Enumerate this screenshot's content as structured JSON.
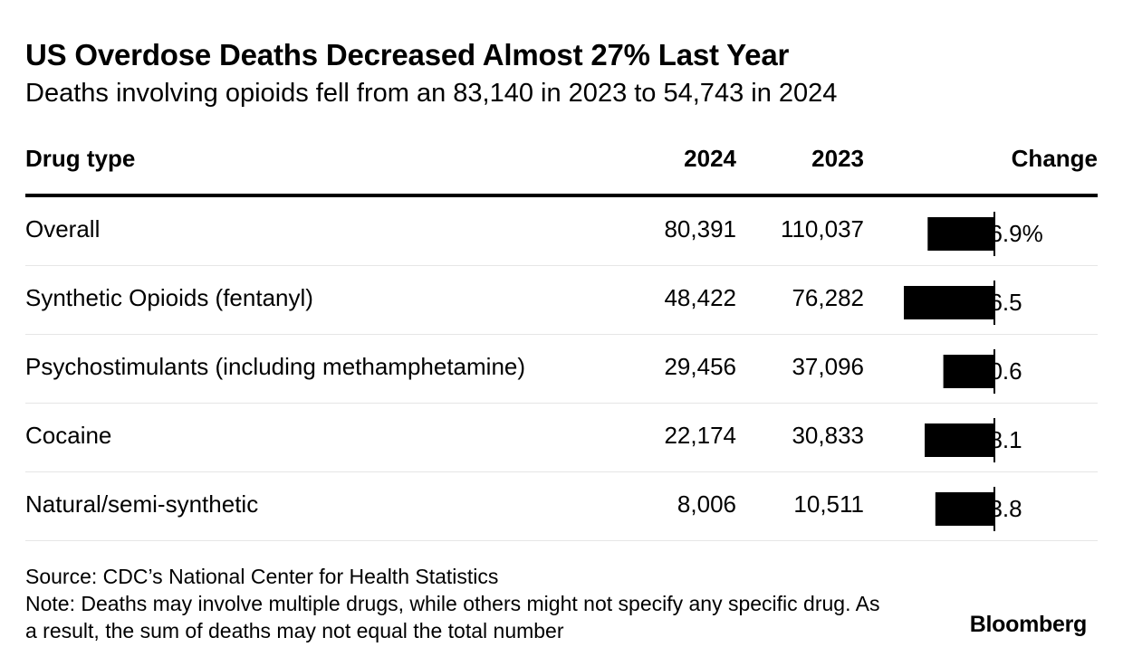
{
  "title": "US Overdose Deaths Decreased Almost 27% Last Year",
  "subtitle": "Deaths involving opioids fell from an 83,140 in 2023 to 54,743 in 2024",
  "chart_data": {
    "type": "table",
    "columns": [
      "Drug type",
      "2024",
      "2023",
      "Change"
    ],
    "rows": [
      {
        "drug": "Overall",
        "y2024": "80,391",
        "y2023": "110,037",
        "change": 26.9,
        "change_label": "26.9%"
      },
      {
        "drug": "Synthetic Opioids (fentanyl)",
        "y2024": "48,422",
        "y2023": "76,282",
        "change": 36.5,
        "change_label": "36.5"
      },
      {
        "drug": "Psychostimulants (including methamphetamine)",
        "y2024": "29,456",
        "y2023": "37,096",
        "change": 20.6,
        "change_label": "20.6"
      },
      {
        "drug": "Cocaine",
        "y2024": "22,174",
        "y2023": "30,833",
        "change": 28.1,
        "change_label": "28.1"
      },
      {
        "drug": "Natural/semi-synthetic",
        "y2024": "8,006",
        "y2023": "10,511",
        "change": 23.8,
        "change_label": "23.8"
      }
    ],
    "bar_color": "#000000",
    "change_max": 36.5
  },
  "footer": {
    "source": "Source: CDC’s National Center for Health Statistics",
    "note": "Note: Deaths may involve multiple drugs, while others might not specify any specific drug. As a result, the sum of deaths may not equal the total number",
    "logo": "Bloomberg"
  }
}
